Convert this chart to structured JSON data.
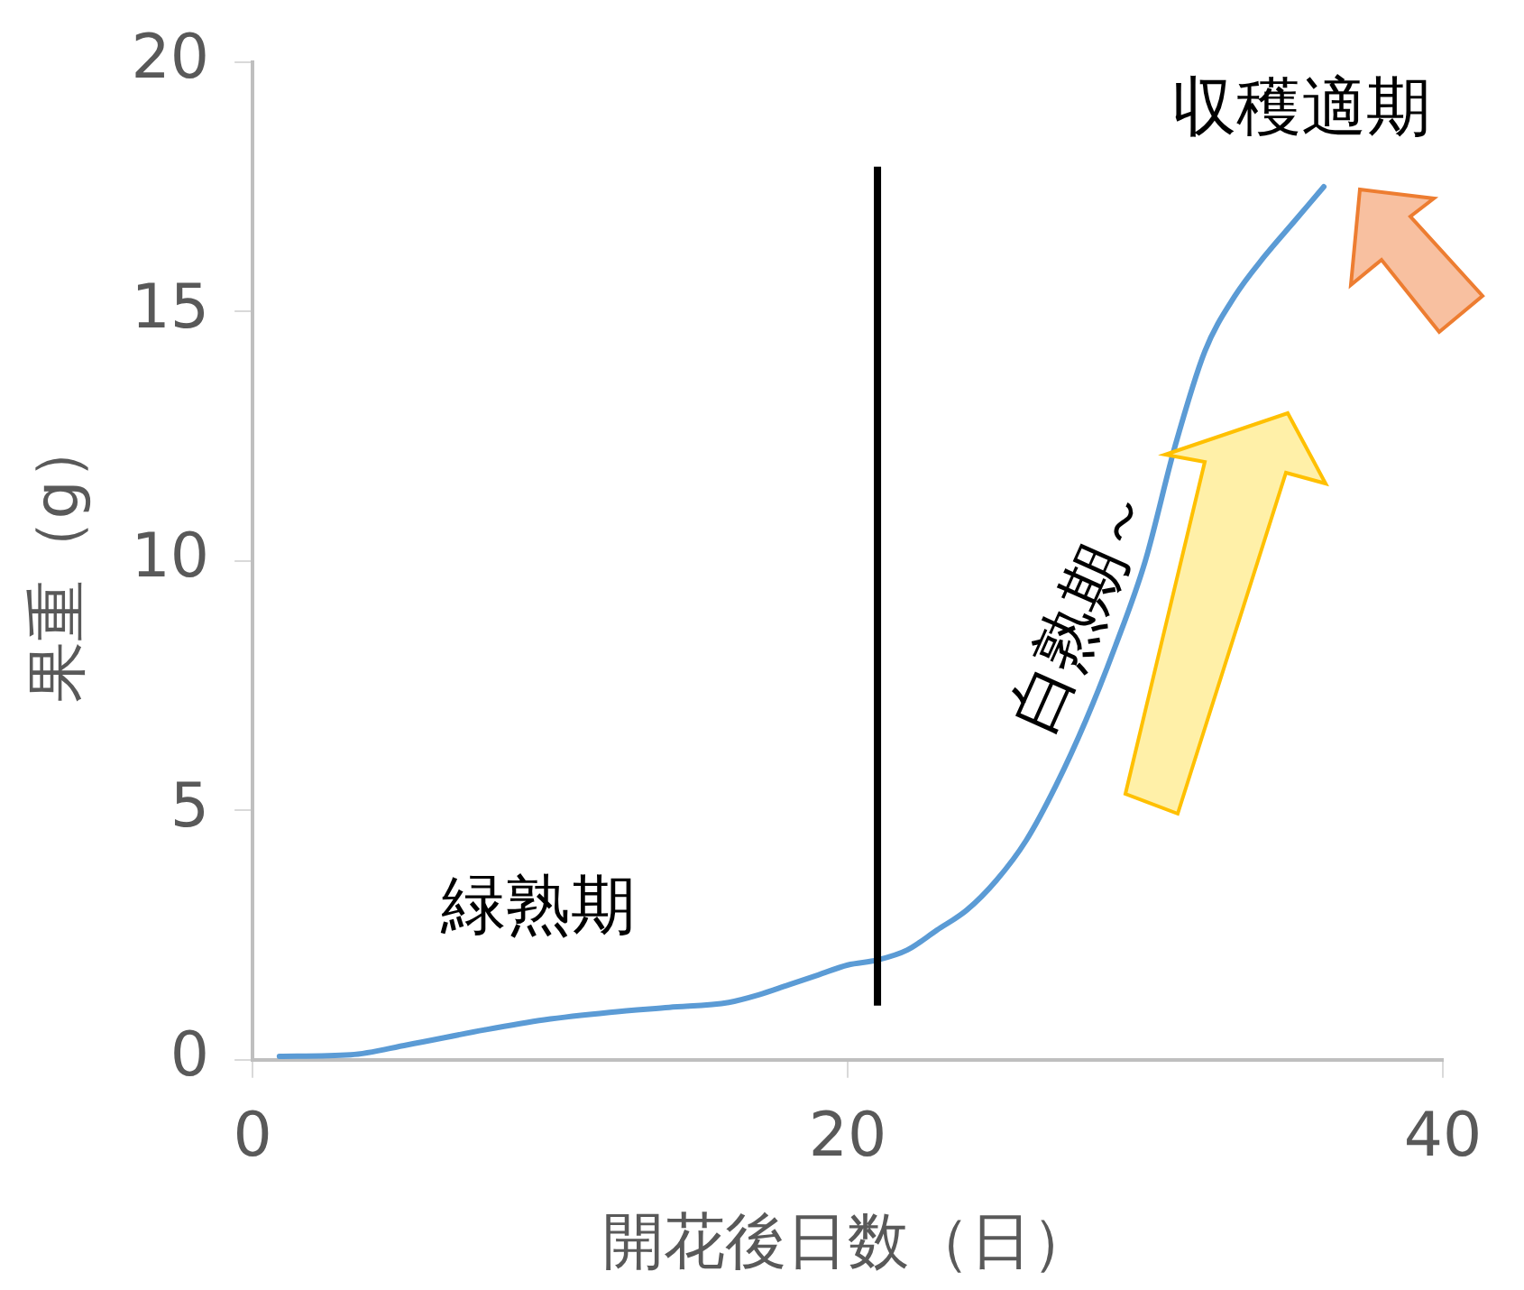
{
  "chart_data": {
    "type": "line",
    "xlabel": "開花後日数（日）",
    "ylabel": "果重（g）",
    "x": [
      0.9,
      3.3,
      5.2,
      7.8,
      9.8,
      12,
      14,
      16,
      17,
      18,
      19,
      20,
      21,
      22,
      23,
      24,
      25,
      26,
      27,
      28,
      29,
      30,
      31,
      32,
      33,
      34,
      35,
      36
    ],
    "series": [
      {
        "color": "#5b9bd5",
        "values": [
          0.07,
          0.1,
          0.3,
          0.6,
          0.8,
          0.95,
          1.05,
          1.15,
          1.3,
          1.5,
          1.7,
          1.9,
          2.0,
          2.2,
          2.6,
          3.0,
          3.6,
          4.4,
          5.5,
          6.8,
          8.3,
          10.0,
          12.3,
          14.2,
          15.3,
          16.1,
          16.8,
          17.5
        ]
      }
    ],
    "xlim": [
      0,
      40
    ],
    "xticks": [
      0,
      20,
      40
    ],
    "ylim": [
      0,
      20
    ],
    "yticks": [
      0,
      5,
      10,
      15,
      20
    ],
    "grid": false,
    "legend": false,
    "marker": "none",
    "line_style": "solid",
    "ref_lines": [
      {
        "axis": "x",
        "value": 21,
        "color": "#000000"
      }
    ],
    "annotations": [
      "緑熟期",
      "白熟期～",
      "収穫適期"
    ]
  }
}
